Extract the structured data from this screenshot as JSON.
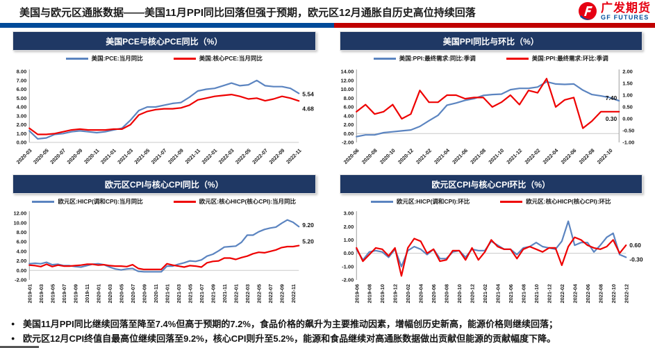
{
  "header": {
    "title": "美国与欧元区通胀数据——美国11月PPI同比回落但强于预期，欧元区12月通胀自历史高位持续回落",
    "logo": {
      "cn": "广发期货",
      "en": "GF FUTURES"
    },
    "divider_left_color": "#004a99",
    "divider_right_color": "#c00000"
  },
  "theme": {
    "panel_title_bg": "#1f3864",
    "line_blue": "#5b84c0",
    "line_red": "#ee0000"
  },
  "charts": [
    {
      "title": "美国PCE与核心PCE同比（%）",
      "chart_data": {
        "type": "line",
        "x_start": "2020-03",
        "x_count": 33,
        "tick_labels": [
          "2020-03",
          "2020-05",
          "2020-07",
          "2020-09",
          "2020-11",
          "2021-01",
          "2021-03",
          "2021-05",
          "2021-07",
          "2021-09",
          "2021-11",
          "2022-01",
          "2022-03",
          "2022-05",
          "2022-07",
          "2022-09",
          "2022-11"
        ],
        "tick_rotation": -45,
        "ylim": [
          0,
          8
        ],
        "ystep": 1,
        "series": [
          {
            "name": "美国:PCE:当月同比",
            "color": "#5b84c0",
            "axis": "left",
            "end_label": "5.54",
            "end_label_dy": 1,
            "values": [
              1.3,
              0.4,
              0.5,
              0.9,
              1.0,
              1.2,
              1.3,
              1.2,
              1.1,
              1.2,
              1.4,
              1.6,
              2.5,
              3.6,
              4.0,
              4.0,
              4.2,
              4.4,
              4.5,
              5.1,
              5.8,
              6.0,
              6.1,
              6.4,
              6.7,
              6.4,
              6.5,
              7.0,
              6.4,
              6.3,
              6.3,
              6.1,
              5.54
            ]
          },
          {
            "name": "美国:核心PCE:当月同比",
            "color": "#ee0000",
            "axis": "left",
            "end_label": "4.68",
            "end_label_dy": 11,
            "values": [
              1.6,
              0.9,
              0.9,
              1.0,
              1.2,
              1.4,
              1.5,
              1.4,
              1.4,
              1.4,
              1.5,
              1.5,
              2.0,
              3.1,
              3.5,
              3.7,
              3.8,
              3.8,
              3.9,
              4.2,
              4.8,
              5.0,
              5.2,
              5.3,
              5.4,
              5.2,
              4.9,
              5.0,
              4.7,
              4.9,
              5.2,
              5.0,
              4.68
            ]
          }
        ]
      }
    },
    {
      "title": "美国PPI同比与环比（%）",
      "chart_data": {
        "type": "line",
        "x_start": "2020-06",
        "x_count": 30,
        "tick_labels": [
          "2020-06",
          "2020-08",
          "2020-10",
          "2020-12",
          "2021-02",
          "2021-04",
          "2021-06",
          "2021-08",
          "2021-10",
          "2021-12",
          "2022-02",
          "2022-04",
          "2022-06",
          "2022-08",
          "2022-10"
        ],
        "tick_rotation": -45,
        "ylim": [
          -2,
          14
        ],
        "ystep": 2,
        "ylim_right": [
          -1,
          2
        ],
        "ystep_right": 0.5,
        "series": [
          {
            "name": "美国:PPI:最终需求:同比:季调",
            "color": "#5b84c0",
            "axis": "left",
            "end_label": "7.40",
            "end_label_dy": -4,
            "values": [
              -0.7,
              -0.3,
              -0.3,
              0.2,
              0.4,
              0.6,
              0.8,
              1.6,
              2.9,
              4.1,
              6.4,
              6.9,
              7.5,
              7.9,
              8.6,
              8.8,
              8.9,
              9.9,
              10.2,
              10.2,
              10.5,
              11.7,
              11.2,
              11.1,
              11.2,
              9.8,
              8.8,
              8.5,
              8.1,
              7.4
            ]
          },
          {
            "name": "美国:PPI:最终需求:环比:季调",
            "color": "#ee0000",
            "axis": "right",
            "end_label": "0.30",
            "end_label_dy": 10,
            "values": [
              0.3,
              0.6,
              0.2,
              0.3,
              0.6,
              0.0,
              0.2,
              1.2,
              0.7,
              0.7,
              1.0,
              1.0,
              0.85,
              0.9,
              0.9,
              0.5,
              0.7,
              1.0,
              0.6,
              1.2,
              1.1,
              1.7,
              0.5,
              0.8,
              0.9,
              -0.4,
              -0.1,
              0.3,
              0.3,
              0.3
            ]
          }
        ]
      }
    },
    {
      "title": "欧元区CPI与核心CPI同比（%）",
      "chart_data": {
        "type": "line",
        "x_start": "2019-01",
        "x_count": 48,
        "tick_labels": [
          "2019-01",
          "2019-03",
          "2019-05",
          "2019-07",
          "2019-09",
          "2019-11",
          "2020-01",
          "2020-03",
          "2020-05",
          "2020-07",
          "2020-09",
          "2020-11",
          "2021-01",
          "2021-03",
          "2021-05",
          "2021-07",
          "2021-09",
          "2021-11",
          "2022-01",
          "2022-03",
          "2022-05",
          "2022-07",
          "2022-09",
          "2022-11"
        ],
        "tick_rotation": -90,
        "ylim": [
          -2,
          12
        ],
        "ystep": 2,
        "series": [
          {
            "name": "欧元区:HICP(调和CPI):当月同比",
            "color": "#5b84c0",
            "axis": "left",
            "end_label": "9.20",
            "end_label_dy": -2,
            "values": [
              1.4,
              1.5,
              1.4,
              1.7,
              1.2,
              1.3,
              1.0,
              1.0,
              0.8,
              0.7,
              1.0,
              1.3,
              1.4,
              1.2,
              0.7,
              0.3,
              0.1,
              0.3,
              0.4,
              -0.2,
              -0.3,
              -0.3,
              -0.3,
              -0.3,
              0.9,
              0.9,
              1.3,
              1.6,
              2.0,
              1.9,
              2.2,
              3.0,
              3.4,
              4.1,
              4.9,
              5.0,
              5.1,
              5.9,
              7.4,
              7.4,
              8.1,
              8.6,
              8.9,
              9.1,
              9.9,
              10.6,
              10.1,
              9.2
            ]
          },
          {
            "name": "欧元区:核心HICP(核心CPI):当月同比",
            "color": "#ee0000",
            "axis": "left",
            "end_label": "5.20",
            "end_label_dy": -6,
            "values": [
              1.1,
              1.0,
              0.8,
              1.3,
              0.8,
              1.1,
              0.9,
              0.9,
              1.0,
              1.1,
              1.3,
              1.3,
              1.1,
              1.2,
              1.0,
              0.9,
              0.9,
              0.8,
              1.2,
              0.4,
              0.2,
              0.2,
              0.2,
              0.2,
              1.4,
              1.1,
              0.9,
              0.7,
              1.0,
              0.9,
              0.7,
              1.6,
              1.9,
              2.0,
              2.6,
              2.6,
              2.3,
              2.7,
              3.0,
              3.5,
              3.8,
              3.7,
              4.0,
              4.3,
              4.8,
              5.0,
              5.0,
              5.2
            ]
          }
        ]
      }
    },
    {
      "title": "欧元区CPI与核心CPI环比（%）",
      "chart_data": {
        "type": "line",
        "x_start": "2019-06",
        "x_count": 43,
        "tick_labels": [
          "2019-06",
          "2019-08",
          "2019-10",
          "2019-12",
          "2020-02",
          "2020-04",
          "2020-06",
          "2020-08",
          "2020-10",
          "2020-12",
          "2021-02",
          "2021-04",
          "2021-06",
          "2021-08",
          "2021-10",
          "2021-12",
          "2022-02",
          "2022-04",
          "2022-06",
          "2022-08",
          "2022-10",
          "2022-12"
        ],
        "tick_rotation": -90,
        "ylim": [
          -2,
          3
        ],
        "ystep": 1,
        "series": [
          {
            "name": "欧元区:HICP(调和CPI):环比",
            "color": "#5b84c0",
            "axis": "left",
            "end_label": "-0.30",
            "end_label_dy": 3,
            "values": [
              0.3,
              -0.5,
              0.1,
              0.2,
              0.1,
              -0.3,
              0.3,
              -1.0,
              0.2,
              0.5,
              0.3,
              -0.1,
              0.3,
              -0.4,
              -0.4,
              0.1,
              0.2,
              -0.3,
              0.3,
              0.2,
              0.2,
              0.9,
              0.6,
              0.3,
              0.3,
              -0.1,
              0.4,
              0.5,
              0.8,
              0.5,
              0.4,
              0.3,
              0.9,
              2.4,
              0.6,
              0.8,
              0.8,
              0.1,
              0.6,
              1.2,
              1.5,
              -0.1,
              -0.3
            ]
          },
          {
            "name": "欧元区:核心HICP(核心CPI):环比",
            "color": "#ee0000",
            "axis": "left",
            "end_label": "0.60",
            "end_label_dy": 0,
            "values": [
              0.4,
              -0.6,
              -0.1,
              0.4,
              0.3,
              -0.2,
              0.4,
              -1.7,
              0.4,
              1.1,
              0.9,
              0.0,
              0.3,
              -0.6,
              -0.5,
              0.2,
              0.2,
              -0.5,
              0.4,
              -0.5,
              0.1,
              1.0,
              0.5,
              0.3,
              0.3,
              -0.4,
              0.3,
              0.5,
              0.3,
              0.1,
              0.4,
              0.4,
              -0.9,
              0.5,
              1.2,
              1.0,
              0.6,
              0.4,
              0.3,
              0.5,
              1.0,
              0.0,
              0.6
            ]
          }
        ]
      }
    }
  ],
  "bullets": [
    "美国11月PPI同比继续回落至降至7.4%但高于预期的7.2%，食品价格的飙升为主要推动因素，增幅创历史新高，能源价格则继续回落；",
    "欧元区12月CPI终值自最高位继续回落至9.2%，核心CPI则升至5.2%，能源和食品继续对高通胀数据做出贡献但能源的贡献幅度下降。"
  ]
}
